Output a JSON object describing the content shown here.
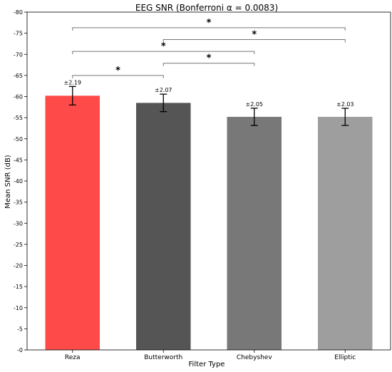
{
  "chart_data": {
    "type": "bar",
    "title": "EEG SNR  (Bonferroni α = 0.0083)",
    "xlabel": "Filter Type",
    "ylabel": "Mean SNR (dB)",
    "ylim": [
      0,
      -80
    ],
    "y_inverted": true,
    "yticks": [
      0,
      -5,
      -10,
      -15,
      -20,
      -25,
      -30,
      -35,
      -40,
      -45,
      -50,
      -55,
      -60,
      -65,
      -70,
      -75,
      -80
    ],
    "ytick_labels": [
      "-0",
      "-5",
      "-10",
      "-15",
      "-20",
      "-25",
      "-30",
      "-35",
      "-40",
      "-45",
      "-50",
      "-55",
      "-60",
      "-65",
      "-70",
      "-75",
      "-80"
    ],
    "categories": [
      "Reza",
      "Butterworth",
      "Chebyshev",
      "Elliptic"
    ],
    "values": [
      -60.2,
      -58.5,
      -55.2,
      -55.2
    ],
    "errors": [
      2.19,
      2.07,
      2.05,
      2.03
    ],
    "error_labels": [
      "±2.19",
      "±2.07",
      "±2.05",
      "±2.03"
    ],
    "colors": [
      "#ff4a4a",
      "#555555",
      "#787878",
      "#9e9e9e"
    ],
    "grid": false,
    "significance": [
      {
        "from": 0,
        "to": 1,
        "y": -65.0,
        "label": "*"
      },
      {
        "from": 1,
        "to": 2,
        "y": -67.9,
        "label": "*"
      },
      {
        "from": 0,
        "to": 2,
        "y": -70.7,
        "label": "*"
      },
      {
        "from": 1,
        "to": 3,
        "y": -73.5,
        "label": "*"
      },
      {
        "from": 0,
        "to": 3,
        "y": -76.3,
        "label": "*"
      }
    ]
  }
}
